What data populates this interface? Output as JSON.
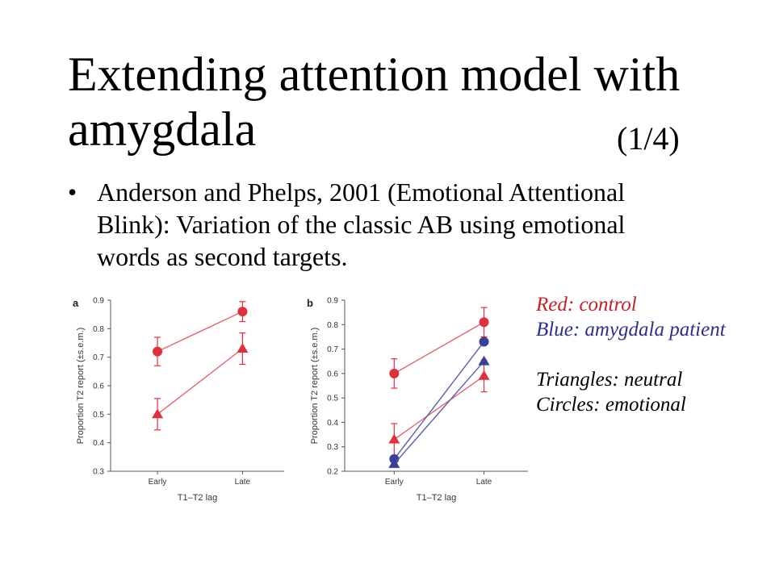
{
  "slide": {
    "title_line1": "Extending attention model with",
    "title_line2": "amygdala",
    "page_number": "(1/4)",
    "bullet": "Anderson and Phelps, 2001 (Emotional Attentional Blink): Variation of the classic AB using emotional words as second targets."
  },
  "legend": {
    "red_label": "Red:",
    "red_text": "control",
    "blue_label": "Blue:",
    "blue_text": "amygdala patient",
    "triangles": "Triangles: neutral",
    "circles": "Circles: emotional"
  },
  "colors": {
    "red": "#e0303c",
    "red_line": "#e8656c",
    "blue": "#3a3f97",
    "blue_line": "#5a5fae",
    "error": "#e0303c"
  },
  "chart_data": [
    {
      "type": "line",
      "panel_label": "a",
      "categories": [
        "Early",
        "Late"
      ],
      "xlabel": "T1–T2 lag",
      "ylabel": "Proportion T2 report (±s.e.m.)",
      "ylim": [
        0.3,
        0.9
      ],
      "yticks": [
        "0.3",
        "0.4",
        "0.5",
        "0.6",
        "0.7",
        "0.8",
        "0.9"
      ],
      "series": [
        {
          "marker": "circle",
          "color": "red",
          "values": [
            0.72,
            0.86
          ],
          "errors": [
            0.05,
            0.035
          ]
        },
        {
          "marker": "triangle",
          "color": "red",
          "values": [
            0.5,
            0.73
          ],
          "errors": [
            0.055,
            0.055
          ]
        }
      ]
    },
    {
      "type": "line",
      "panel_label": "b",
      "categories": [
        "Early",
        "Late"
      ],
      "xlabel": "T1–T2 lag",
      "ylabel": "Proportion T2 report (±s.e.m.)",
      "ylim": [
        0.2,
        0.9
      ],
      "yticks": [
        "0.2",
        "0.3",
        "0.4",
        "0.5",
        "0.6",
        "0.7",
        "0.8",
        "0.9"
      ],
      "series": [
        {
          "marker": "circle",
          "color": "red",
          "values": [
            0.6,
            0.81
          ],
          "errors": [
            0.06,
            0.06
          ]
        },
        {
          "marker": "triangle",
          "color": "red",
          "values": [
            0.33,
            0.59
          ],
          "errors": [
            0.065,
            0.065
          ]
        },
        {
          "marker": "circle",
          "color": "blue",
          "values": [
            0.25,
            0.73
          ],
          "errors": [
            0,
            0
          ]
        },
        {
          "marker": "triangle",
          "color": "blue",
          "values": [
            0.23,
            0.65
          ],
          "errors": [
            0,
            0
          ]
        }
      ]
    }
  ]
}
